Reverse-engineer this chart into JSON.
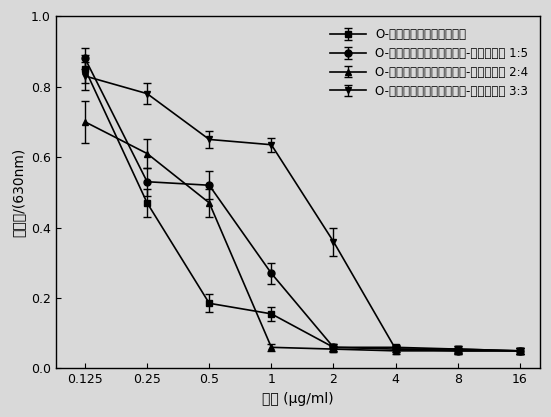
{
  "x": [
    0.125,
    0.25,
    0.5,
    1,
    2,
    4,
    8,
    16
  ],
  "series": [
    {
      "label": "O-罧甲基殼聚糖包裹纳米银",
      "marker": "s",
      "y": [
        0.85,
        0.47,
        0.185,
        0.155,
        0.06,
        0.06,
        0.055,
        0.05
      ],
      "yerr": [
        0.04,
        0.04,
        0.025,
        0.02,
        0.01,
        0.008,
        0.01,
        0.008
      ]
    },
    {
      "label": "O-罧甲基殼聚糖包裹纳米银-氧化石墨烯 1:5",
      "marker": "o",
      "y": [
        0.88,
        0.53,
        0.52,
        0.27,
        0.06,
        0.055,
        0.05,
        0.05
      ],
      "yerr": [
        0.03,
        0.04,
        0.04,
        0.03,
        0.01,
        0.008,
        0.008,
        0.008
      ]
    },
    {
      "label": "O-罧甲基殼聚糖包裹纳米银-氧化石墨烯 2:4",
      "marker": "^",
      "y": [
        0.7,
        0.61,
        0.47,
        0.06,
        0.055,
        0.05,
        0.05,
        0.05
      ],
      "yerr": [
        0.06,
        0.04,
        0.04,
        0.01,
        0.008,
        0.008,
        0.008,
        0.008
      ]
    },
    {
      "label": "O-罧甲基殼聚糖包裹纳米银-氧化石墨烯 3:3",
      "marker": "v",
      "y": [
        0.83,
        0.78,
        0.65,
        0.635,
        0.36,
        0.055,
        0.055,
        0.05
      ],
      "yerr": [
        0.04,
        0.03,
        0.025,
        0.02,
        0.04,
        0.008,
        0.01,
        0.008
      ]
    }
  ],
  "xlabel": "浓度 (μg/ml)",
  "ylabel": "光密度/(630nm)",
  "ylim": [
    0.0,
    1.0
  ],
  "yticks": [
    0.0,
    0.2,
    0.4,
    0.6,
    0.8,
    1.0
  ],
  "xtick_labels": [
    "0.125",
    "0.25",
    "0.5",
    "1",
    "2",
    "4",
    "8",
    "16"
  ],
  "bg_color": "#d9d9d9",
  "line_color": "black",
  "font_size": 10,
  "legend_fontsize": 8.5
}
